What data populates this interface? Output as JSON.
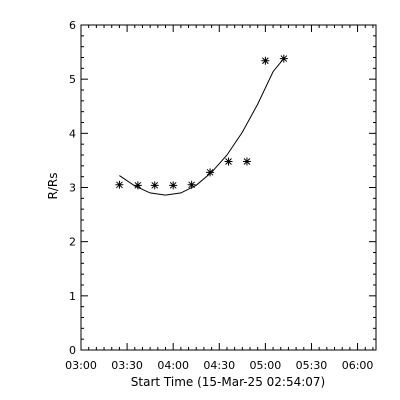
{
  "chart_data": {
    "type": "scatter",
    "title": "",
    "xlabel": "Start Time (15-Mar-25 02:54:07)",
    "ylabel": "R/Rs",
    "xlim": [
      "03:00",
      "06:12"
    ],
    "ylim": [
      0,
      6
    ],
    "x_ticks": [
      "03:00",
      "03:30",
      "04:00",
      "04:30",
      "05:00",
      "05:30",
      "06:00"
    ],
    "y_ticks": [
      "0",
      "1",
      "2",
      "3",
      "4",
      "5",
      "6"
    ],
    "grid": false,
    "legend": "none",
    "series": [
      {
        "marker": "asterisk",
        "points": [
          {
            "x": "03:25",
            "y": 3.05
          },
          {
            "x": "03:37",
            "y": 3.04
          },
          {
            "x": "03:48",
            "y": 3.04
          },
          {
            "x": "04:00",
            "y": 3.04
          },
          {
            "x": "04:12",
            "y": 3.05
          },
          {
            "x": "04:24",
            "y": 3.28
          },
          {
            "x": "04:36",
            "y": 3.48
          },
          {
            "x": "04:48",
            "y": 3.48
          },
          {
            "x": "05:00",
            "y": 5.34
          },
          {
            "x": "05:12",
            "y": 5.38
          }
        ]
      },
      {
        "style": "line",
        "points": [
          {
            "x": "03:25",
            "y": 3.22
          },
          {
            "x": "03:35",
            "y": 3.03
          },
          {
            "x": "03:45",
            "y": 2.9
          },
          {
            "x": "03:55",
            "y": 2.86
          },
          {
            "x": "04:05",
            "y": 2.9
          },
          {
            "x": "04:15",
            "y": 3.04
          },
          {
            "x": "04:25",
            "y": 3.28
          },
          {
            "x": "04:35",
            "y": 3.6
          },
          {
            "x": "04:45",
            "y": 4.02
          },
          {
            "x": "04:55",
            "y": 4.54
          },
          {
            "x": "05:05",
            "y": 5.14
          },
          {
            "x": "05:12",
            "y": 5.38
          }
        ]
      }
    ]
  }
}
